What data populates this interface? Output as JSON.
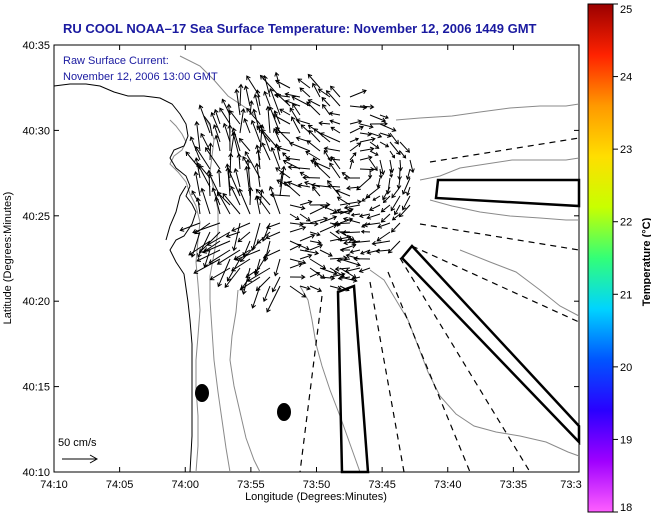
{
  "chart_data": {
    "type": "vector_field_map",
    "title": "RU COOL  NOAA–17  Sea Surface Temperature:  November 12, 2006 1449 GMT",
    "subtitle_line1": "Raw Surface Current:",
    "subtitle_line2": "November 12, 2006 13:00 GMT",
    "xlabel": "Longitude (Degrees:Minutes)",
    "ylabel": "Latitude (Degrees:Minutes)",
    "x_ticks": [
      "74:10",
      "74:05",
      "74:00",
      "73:55",
      "73:50",
      "73:45",
      "73:40",
      "73:35",
      "73:3"
    ],
    "y_ticks": [
      "40:35",
      "40:30",
      "40:25",
      "40:20",
      "40:15",
      "40:10"
    ],
    "xlim_minutes": [
      -610,
      -570
    ],
    "ylim_minutes": [
      2410,
      2435
    ],
    "scale_label": "50 cm/s",
    "colorbar": {
      "label": "Temperature (°C)",
      "min": 18,
      "max": 25,
      "ticks": [
        "18",
        "19",
        "20",
        "21",
        "22",
        "23",
        "24",
        "25"
      ]
    },
    "grid": false
  }
}
